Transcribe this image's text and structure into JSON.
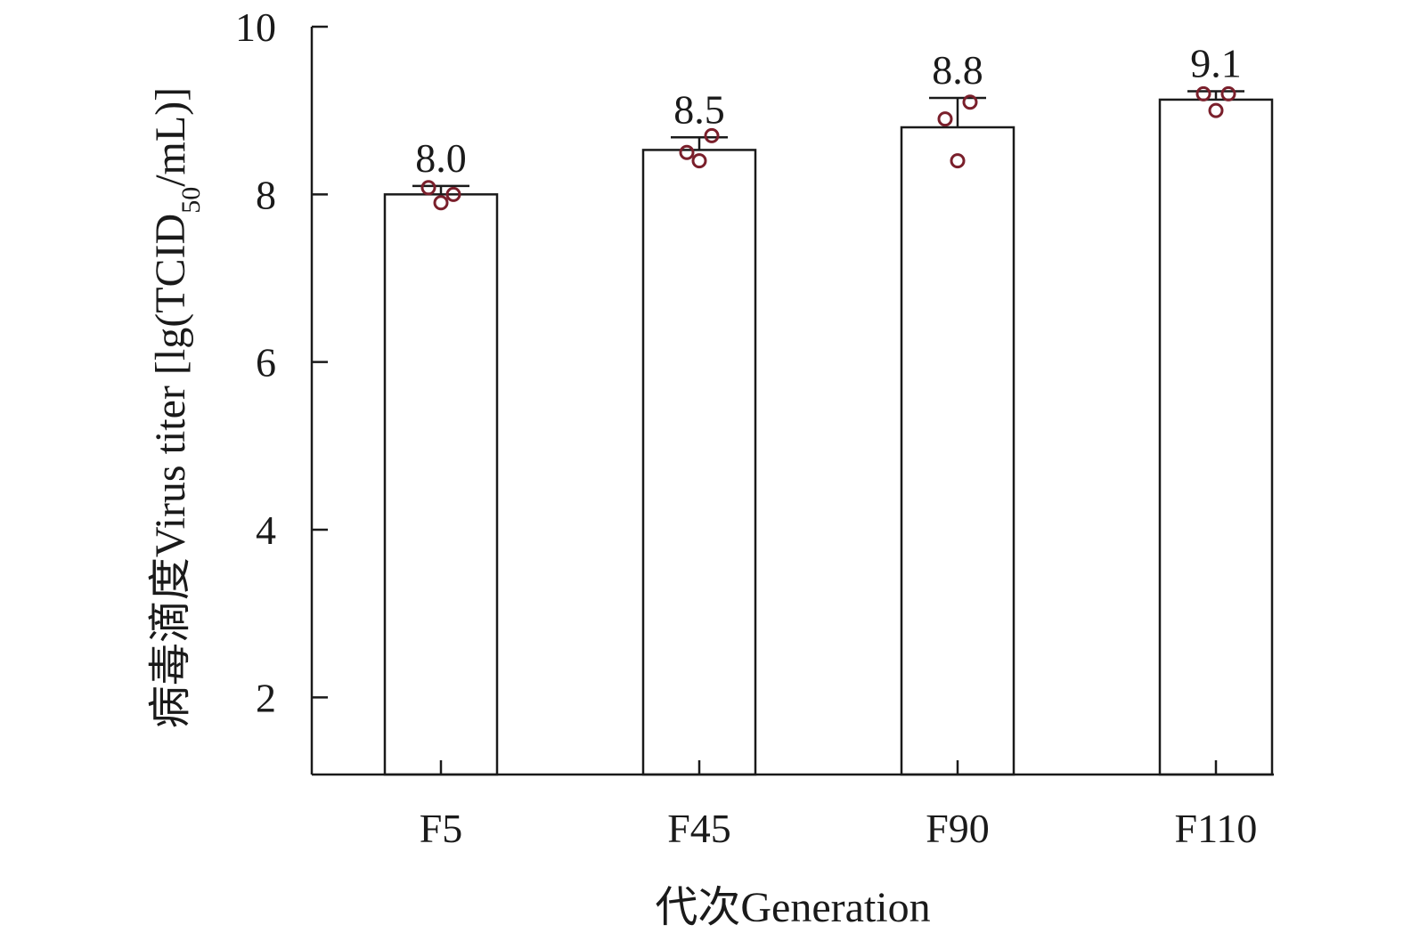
{
  "chart_data": {
    "type": "bar",
    "xlabel": "代次Generation",
    "ylabel_parts": {
      "before_sub": "病毒滴度Virus titer [lg(TCID",
      "sub": "50",
      "after_sub": "/mL)]"
    },
    "categories": [
      "F5",
      "F45",
      "F90",
      "F110"
    ],
    "values": [
      8.0,
      8.53,
      8.8,
      9.13
    ],
    "value_labels": [
      "8.0",
      "8.5",
      "8.8",
      "9.1"
    ],
    "error_upper": [
      8.1,
      8.68,
      9.15,
      9.23
    ],
    "points": [
      [
        8.08,
        7.9,
        8.0
      ],
      [
        8.5,
        8.4,
        8.7
      ],
      [
        8.9,
        8.4,
        9.1
      ],
      [
        9.2,
        9.0,
        9.2
      ]
    ],
    "ylim": [
      1.08,
      10
    ],
    "yticks": [
      2,
      4,
      6,
      8,
      10
    ],
    "grid": false,
    "legend": "none",
    "colors": {
      "bar_fill": "#ffffff",
      "bar_stroke": "#1a1a1a",
      "point": "#7a1f2b"
    }
  }
}
